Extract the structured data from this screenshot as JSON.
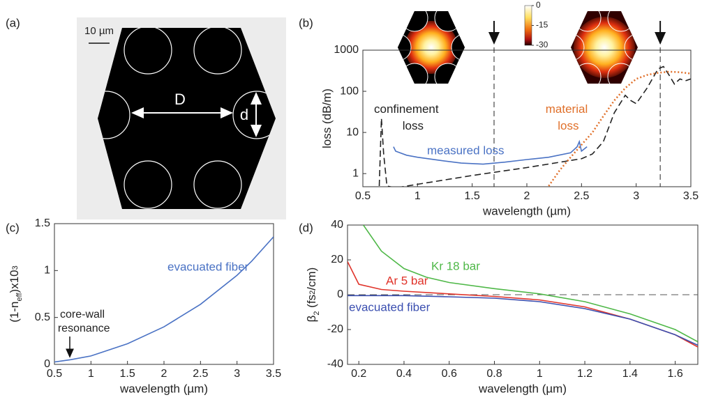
{
  "panel_labels": [
    "(a)",
    "(b)",
    "(c)",
    "(d)"
  ],
  "fiber_image": {
    "scale_bar": "10 µm",
    "D": "D",
    "d": "d"
  },
  "chart_data": [
    {
      "type": "line",
      "yscale": "log",
      "xlabel": "wavelength (µm)",
      "ylabel": [
        {
          "text": "loss (dB/m)"
        }
      ],
      "xlim": [
        0.5,
        3.5
      ],
      "ylim": [
        0.48,
        1000
      ],
      "xticks": [
        0.5,
        1,
        1.5,
        2,
        2.5,
        3,
        3.5
      ],
      "yticks": [
        1,
        10,
        100,
        1000
      ],
      "markers": [
        1.7,
        3.22
      ],
      "colorbar": {
        "ticks": [
          0,
          -15,
          -30
        ]
      },
      "series": [
        {
          "name": "confinement loss",
          "color": "#222222",
          "style": "dashed",
          "x": [
            0.65,
            0.67,
            0.69,
            0.72,
            0.8,
            1.0,
            1.5,
            2.0,
            2.5,
            2.6,
            2.7,
            2.8,
            2.9,
            2.95,
            3.0,
            3.1,
            3.2,
            3.25,
            3.3,
            3.35,
            3.4,
            3.45,
            3.5
          ],
          "values": [
            0.5,
            22,
            3,
            0.5,
            0.45,
            0.55,
            0.9,
            1.4,
            2.3,
            3,
            6,
            30,
            80,
            60,
            50,
            120,
            350,
            400,
            250,
            150,
            200,
            180,
            200
          ]
        },
        {
          "name": "measured loss",
          "color": "#4a72c4",
          "style": "solid",
          "x": [
            0.78,
            0.8,
            0.9,
            1.0,
            1.2,
            1.4,
            1.6,
            1.8,
            2.0,
            2.2,
            2.4,
            2.46,
            2.48,
            2.5,
            2.55
          ],
          "values": [
            4.5,
            3.5,
            2.8,
            2.5,
            2.1,
            1.8,
            1.7,
            1.9,
            2.2,
            2.5,
            3.2,
            4.5,
            6,
            3.5,
            4.5
          ]
        },
        {
          "name": "material loss",
          "color": "#e0702a",
          "style": "dotted",
          "x": [
            2.2,
            2.3,
            2.4,
            2.5,
            2.6,
            2.7,
            2.8,
            2.9,
            3.0,
            3.1,
            3.2,
            3.3,
            3.4,
            3.5
          ],
          "values": [
            0.5,
            1.2,
            2.5,
            5,
            10,
            25,
            60,
            120,
            200,
            250,
            280,
            300,
            290,
            270
          ]
        }
      ]
    },
    {
      "type": "line",
      "xlabel": "wavelength (µm)",
      "ylabel": [
        {
          "text": "(1-n"
        },
        {
          "text": "eff",
          "shift": "sub"
        },
        {
          "text": ")x10"
        },
        {
          "text": "3",
          "shift": "sup"
        }
      ],
      "xlim": [
        0.5,
        3.5
      ],
      "ylim": [
        0,
        1.5
      ],
      "xticks": [
        0.5,
        1,
        1.5,
        2,
        2.5,
        3,
        3.5
      ],
      "yticks": [
        0,
        0.5,
        1,
        1.5
      ],
      "annotations": [
        {
          "text": "core-wall resonance",
          "x": 0.72
        }
      ],
      "series": [
        {
          "name": "evacuated fiber",
          "color": "#4a72c4",
          "style": "solid",
          "x": [
            0.5,
            0.72,
            1,
            1.5,
            2,
            2.5,
            3,
            3.2,
            3.5
          ],
          "values": [
            0.025,
            0.05,
            0.09,
            0.22,
            0.4,
            0.64,
            0.95,
            1.1,
            1.36
          ]
        }
      ]
    },
    {
      "type": "line",
      "xlabel": "wavelength (µm)",
      "ylabel": [
        {
          "text": "β"
        },
        {
          "text": "2",
          "shift": "sub"
        },
        {
          "text": " (fs"
        },
        {
          "text": "2",
          "shift": "sup"
        },
        {
          "text": "/cm)"
        }
      ],
      "xlim": [
        0.15,
        1.7
      ],
      "ylim": [
        -40,
        40
      ],
      "xticks": [
        0.2,
        0.4,
        0.6,
        0.8,
        1,
        1.2,
        1.4,
        1.6
      ],
      "yticks": [
        -40,
        -20,
        0,
        20,
        40
      ],
      "zero_line": true,
      "series": [
        {
          "name": "Kr 18 bar",
          "color": "#4fb848",
          "style": "solid",
          "x": [
            0.22,
            0.3,
            0.4,
            0.5,
            0.6,
            0.8,
            1.0,
            1.2,
            1.4,
            1.6,
            1.7
          ],
          "values": [
            40,
            25,
            15,
            10,
            7,
            3.5,
            0.5,
            -4,
            -11,
            -20,
            -27
          ]
        },
        {
          "name": "Ar 5 bar",
          "color": "#e0332a",
          "style": "solid",
          "x": [
            0.15,
            0.2,
            0.3,
            0.4,
            0.6,
            0.8,
            1.0,
            1.2,
            1.4,
            1.6,
            1.7
          ],
          "values": [
            19,
            6,
            3,
            2,
            0.5,
            -1,
            -3,
            -7,
            -14,
            -23,
            -30
          ]
        },
        {
          "name": "evacuated fiber",
          "color": "#3b4fb0",
          "style": "solid",
          "x": [
            0.15,
            0.4,
            0.6,
            0.8,
            1.0,
            1.2,
            1.4,
            1.6,
            1.7
          ],
          "values": [
            -0.5,
            -0.5,
            -1.2,
            -2,
            -4,
            -8,
            -14,
            -23,
            -29
          ]
        }
      ]
    }
  ]
}
